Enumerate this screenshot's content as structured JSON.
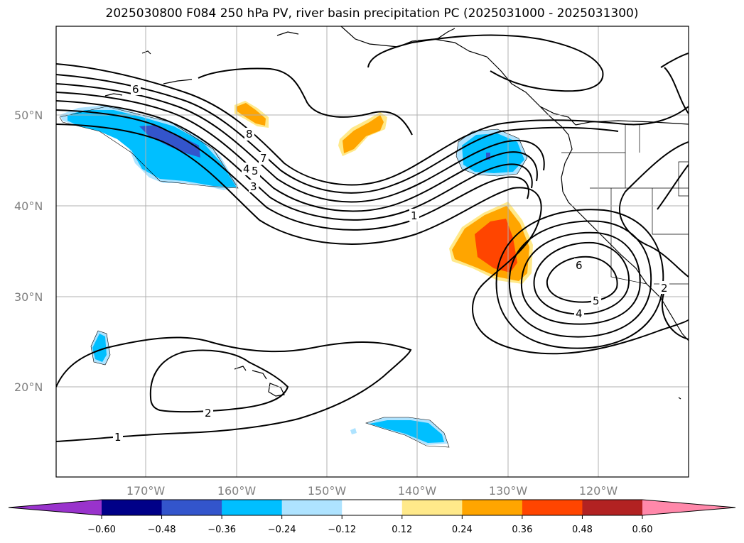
{
  "title": "2025030800 F084 250 hPa PV, river basin precipitation PC (2025031000 - 2025031300)",
  "lat_labels": [
    "50°N",
    "40°N",
    "30°N",
    "20°N"
  ],
  "lon_labels": [
    "170°W",
    "160°W",
    "150°W",
    "140°W",
    "130°W",
    "120°W"
  ],
  "contour_labels": [
    "6",
    "8",
    "7",
    "4",
    "5",
    "3",
    "1",
    "6",
    "5",
    "4",
    "2",
    "2",
    "1"
  ],
  "colorbar": {
    "ticks": [
      "−0.60",
      "−0.48",
      "−0.36",
      "−0.24",
      "−0.12",
      "0.12",
      "0.24",
      "0.36",
      "0.48",
      "0.60"
    ],
    "colors": [
      "#9933cc",
      "#000088",
      "#3355cc",
      "#00bfff",
      "#aee3ff",
      "#ffffff",
      "#ffe98a",
      "#ffa500",
      "#ff4500",
      "#b22222",
      "#ff88aa"
    ]
  },
  "colors": {
    "land_line": "#000000",
    "grid": "#b0b0b0",
    "positive_warm": "#ffa500",
    "negative_cool": "#00bfff"
  }
}
